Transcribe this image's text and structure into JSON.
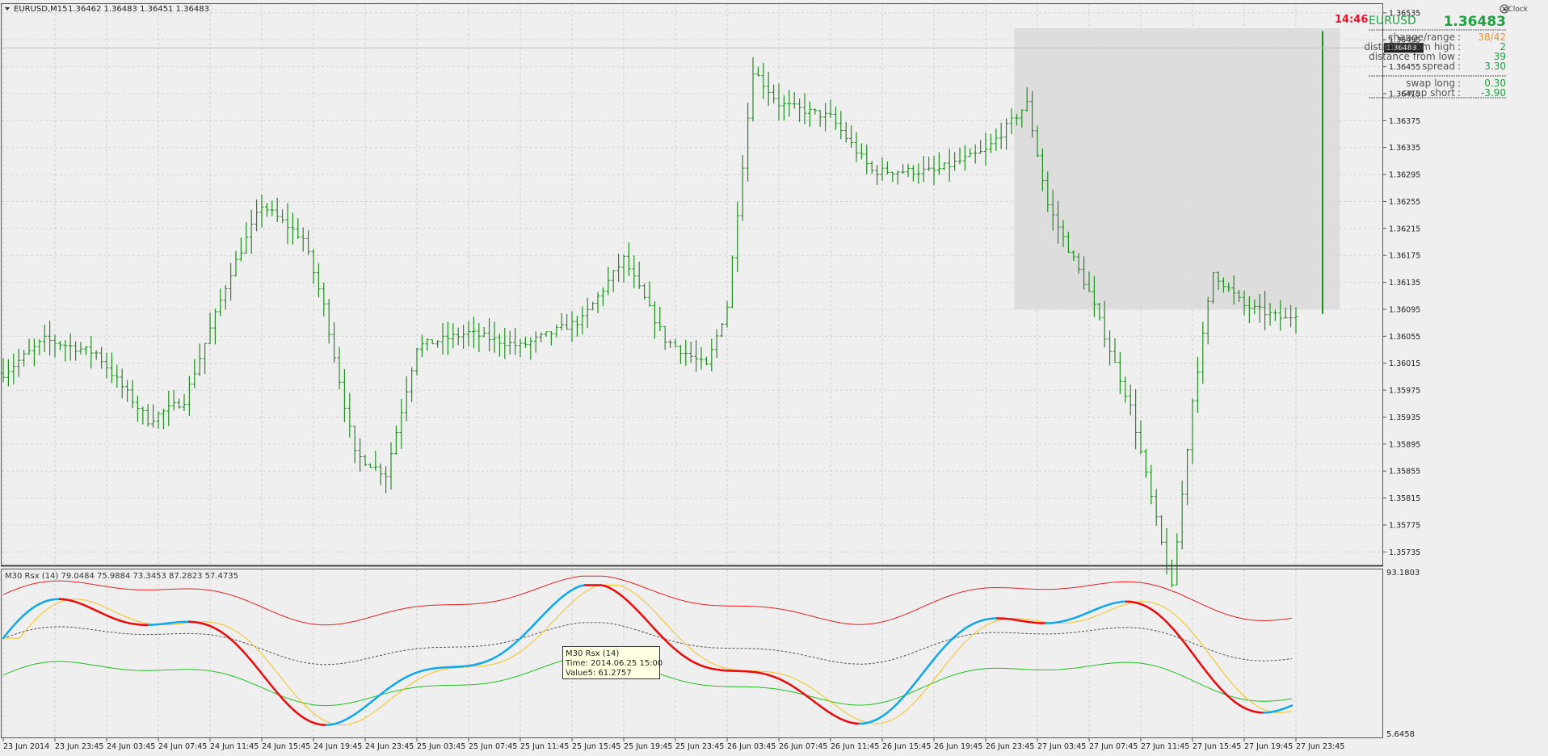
{
  "main_pane": {
    "symbol_header": "EURUSD,M15",
    "ohlc_header": "1.36462 1.36483 1.36451 1.36483",
    "price_ticks": [
      "1.36535",
      "1.36495",
      "1.36455",
      "1.36415",
      "1.36375",
      "1.36335",
      "1.36295",
      "1.36255",
      "1.36215",
      "1.36175",
      "1.36135",
      "1.36095",
      "1.36055",
      "1.36015",
      "1.35975",
      "1.35935",
      "1.35895",
      "1.35855",
      "1.35815",
      "1.35775",
      "1.35735"
    ],
    "current_price_label": "1.36483",
    "price_range": [
      1.35715,
      1.36548
    ],
    "range_box": {
      "from_bar": 196,
      "to_bar": 258,
      "low": 1.36095,
      "high": 1.36512
    },
    "colors": {
      "bars": "#1f8f1f",
      "grid": "#c8c8c8",
      "range_box": "#dadada"
    }
  },
  "eclock": {
    "title": "eClock",
    "close_icon": "close-circle-icon",
    "time": "14:46",
    "symbol": "EURUSD",
    "price": "1.36483",
    "rows": [
      {
        "label": "change/range",
        "value": "38/42",
        "color": "#f0901f"
      },
      {
        "label": "distance from high",
        "value": "2",
        "color": "#20a040"
      },
      {
        "label": "distance from low",
        "value": "39",
        "color": "#20a040"
      },
      {
        "label": "spread",
        "value": "3.30",
        "color": "#20a040"
      }
    ],
    "swap_rows": [
      {
        "label": "swap long",
        "value": "0.30",
        "color": "#20a040"
      },
      {
        "label": "swap short",
        "value": "-3.90",
        "color": "#20a040"
      }
    ],
    "colors": {
      "time": "#e8102a",
      "symbol": "#20a040",
      "price": "#20a040",
      "labels": "#555555"
    }
  },
  "indicator_pane": {
    "header": "M30 Rsx (14) 79.0484 75.9884 73.3453 87.2823 57.4735",
    "max_label": "93.1803",
    "min_label": "5.6458",
    "range": [
      5.6458,
      93.1803
    ],
    "tooltip": {
      "line1": "M30 Rsx (14)",
      "line2": "Time: 2014.06.25 15:00",
      "line3": "Value5: 61.2757"
    },
    "colors": {
      "upper": "#e82020",
      "lower": "#22c022",
      "mid": "#555555",
      "signal": "#f5c21a",
      "rsx_up": "#10a8e8",
      "rsx_down": "#e80c0c"
    }
  },
  "time_axis": [
    "23 Jun 2014",
    "23 Jun 23:45",
    "24 Jun 03:45",
    "24 Jun 07:45",
    "24 Jun 11:45",
    "24 Jun 15:45",
    "24 Jun 19:45",
    "24 Jun 23:45",
    "25 Jun 03:45",
    "25 Jun 07:45",
    "25 Jun 11:45",
    "25 Jun 15:45",
    "25 Jun 19:45",
    "25 Jun 23:45",
    "26 Jun 03:45",
    "26 Jun 07:45",
    "26 Jun 11:45",
    "26 Jun 15:45",
    "26 Jun 19:45",
    "26 Jun 23:45",
    "27 Jun 03:45",
    "27 Jun 07:45",
    "27 Jun 11:45",
    "27 Jun 15:45",
    "27 Jun 19:45",
    "27 Jun 23:45"
  ]
}
